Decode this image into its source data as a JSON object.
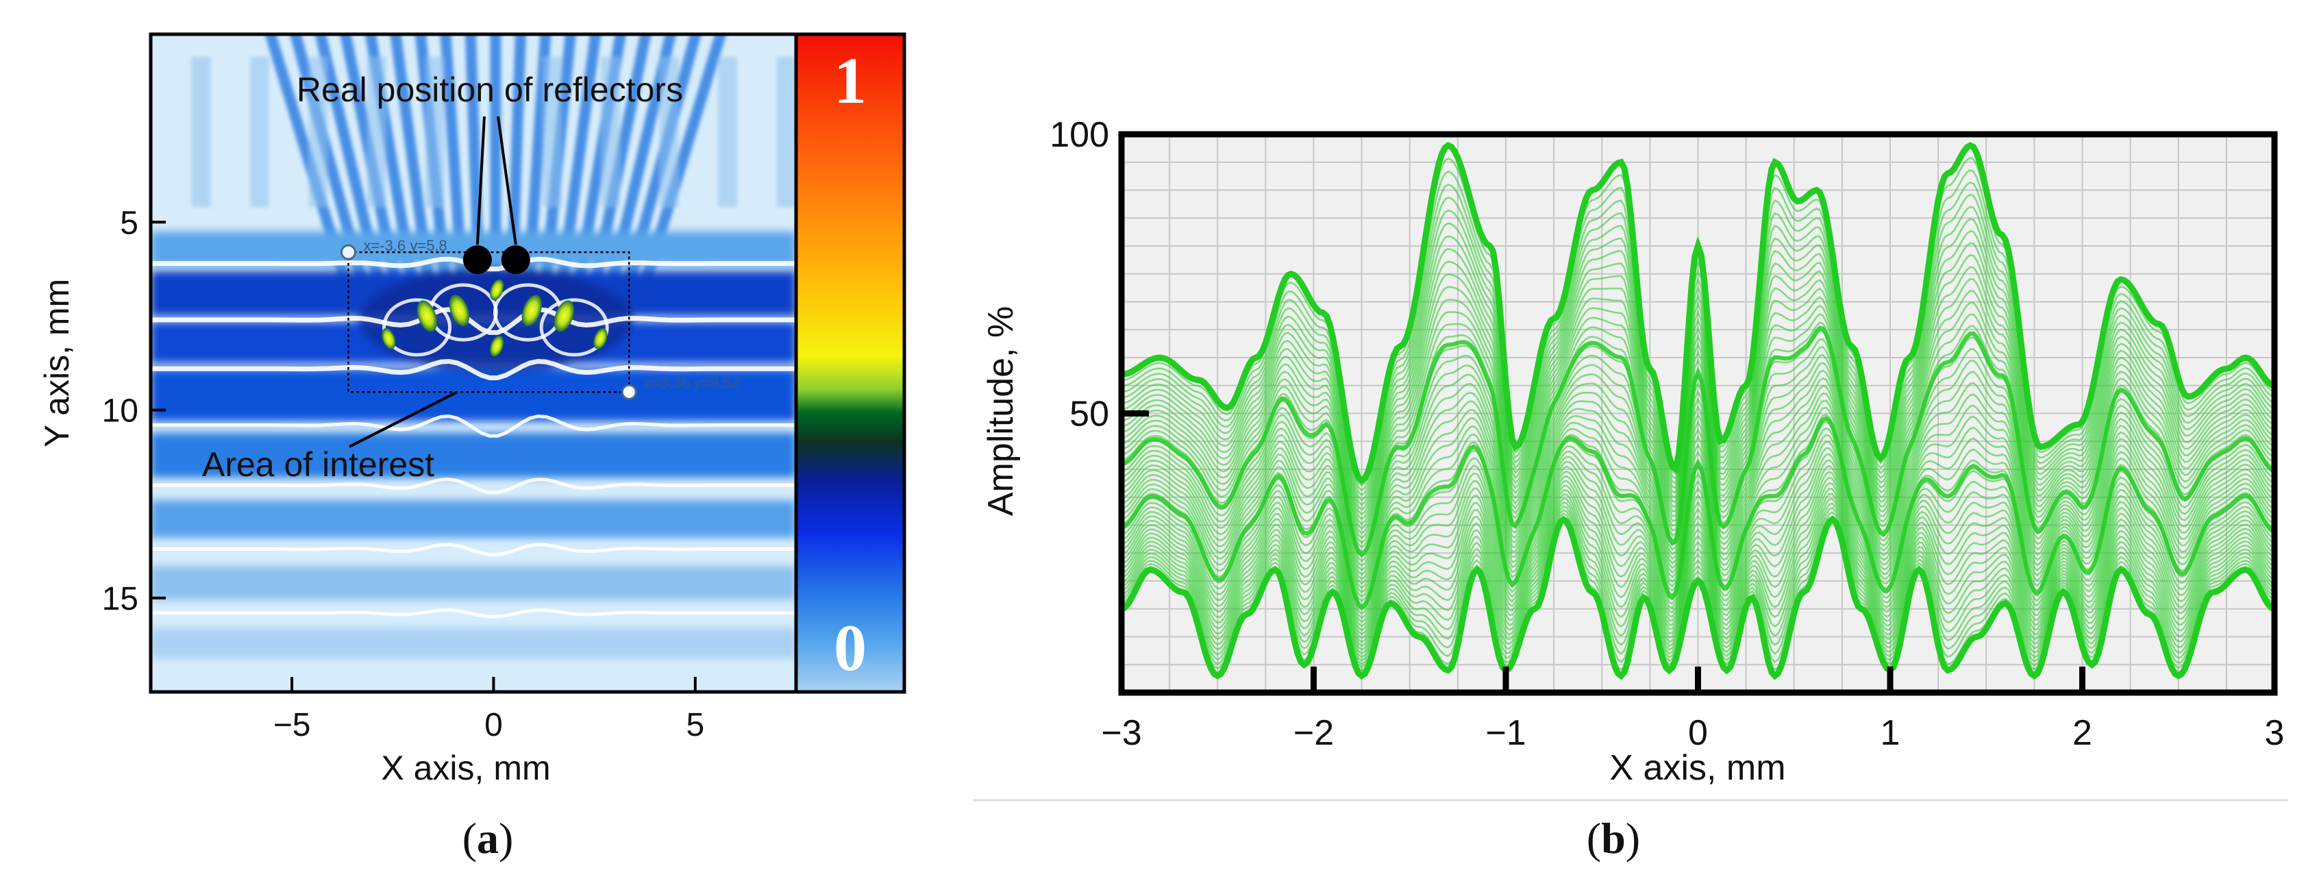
{
  "figure": {
    "panel_a_caption_open": "(",
    "panel_a_caption_letter": "a",
    "panel_a_caption_close": ")",
    "panel_b_caption_open": "(",
    "panel_b_caption_letter": "b",
    "panel_b_caption_close": ")"
  },
  "chart_data": [
    {
      "type": "heatmap",
      "panel": "a",
      "xlabel": "X axis, mm",
      "ylabel": "Y axis, mm",
      "xlim": [
        -8.5,
        7.5
      ],
      "ylim": [
        0,
        17.5
      ],
      "y_inverted": true,
      "x_ticks": [
        -5,
        0,
        5
      ],
      "x_tick_labels": [
        "−5",
        "0",
        "5"
      ],
      "y_ticks": [
        5,
        10,
        15
      ],
      "y_tick_labels": [
        "5",
        "10",
        "15"
      ],
      "colorbar": {
        "max_label": "1",
        "min_label": "0",
        "min": 0,
        "max": 1
      },
      "colors": {
        "deep_blue": "#0a3fc8",
        "light_blue": "#bfe0f7",
        "peak_yellow": "#d6ef1a",
        "reflector": "#000000"
      },
      "reflectors": [
        {
          "x": -0.4,
          "y": 6.0
        },
        {
          "x": 0.55,
          "y": 6.0
        }
      ],
      "area_of_interest": {
        "x1": -3.6,
        "y1": 5.8,
        "x2": 3.36,
        "y2": 9.52
      },
      "marker_labels": [
        "x=-3.6 y=5.8",
        "x=3.36 y=9.52"
      ],
      "annotations": [
        "Real position of reflectors",
        "Area of interest"
      ]
    },
    {
      "type": "line",
      "panel": "b",
      "xlabel": "X axis, mm",
      "ylabel": "Amplitude, %",
      "xlim": [
        -3,
        3
      ],
      "ylim": [
        0,
        100
      ],
      "x_ticks": [
        -3,
        -2,
        -1,
        0,
        1,
        2,
        3
      ],
      "x_tick_labels": [
        "−3",
        "−2",
        "−1",
        "0",
        "1",
        "2",
        "3"
      ],
      "y_ticks": [
        50,
        100
      ],
      "y_tick_labels": [
        "50",
        "100"
      ],
      "grid": true,
      "line_color": "#22cc22",
      "curve_family": "stack of frames interpolating from the top envelope to the bottom envelope",
      "series": [
        {
          "name": "top envelope",
          "x": [
            -3.0,
            -2.8,
            -2.6,
            -2.45,
            -2.3,
            -2.12,
            -1.95,
            -1.75,
            -1.55,
            -1.3,
            -1.08,
            -0.95,
            -0.75,
            -0.55,
            -0.4,
            -0.25,
            -0.12,
            0.0,
            0.12,
            0.25,
            0.4,
            0.52,
            0.62,
            0.8,
            0.95,
            1.1,
            1.3,
            1.42,
            1.58,
            1.78,
            1.98,
            2.2,
            2.4,
            2.55,
            2.75,
            2.85,
            3.0
          ],
          "values": [
            57,
            60,
            56,
            51,
            60,
            75,
            68,
            38,
            62,
            98,
            80,
            44,
            67,
            90,
            95,
            58,
            40,
            80,
            45,
            55,
            95,
            88,
            90,
            62,
            42,
            60,
            93,
            98,
            82,
            44,
            48,
            74,
            66,
            53,
            58,
            60,
            55
          ]
        },
        {
          "name": "bottom envelope",
          "x": [
            -3.0,
            -2.85,
            -2.68,
            -2.5,
            -2.35,
            -2.2,
            -2.05,
            -1.9,
            -1.75,
            -1.6,
            -1.45,
            -1.3,
            -1.15,
            -1.0,
            -0.85,
            -0.7,
            -0.55,
            -0.4,
            -0.28,
            -0.15,
            0.0,
            0.15,
            0.28,
            0.4,
            0.55,
            0.7,
            0.85,
            1.0,
            1.15,
            1.3,
            1.45,
            1.6,
            1.75,
            1.9,
            2.05,
            2.2,
            2.35,
            2.5,
            2.68,
            2.85,
            3.0
          ],
          "values": [
            15,
            22,
            18,
            3,
            14,
            22,
            5,
            18,
            3,
            16,
            10,
            4,
            22,
            4,
            15,
            31,
            18,
            3,
            17,
            4,
            20,
            4,
            17,
            3,
            18,
            31,
            15,
            4,
            22,
            4,
            10,
            16,
            3,
            18,
            5,
            22,
            14,
            3,
            18,
            22,
            15
          ]
        }
      ]
    }
  ]
}
